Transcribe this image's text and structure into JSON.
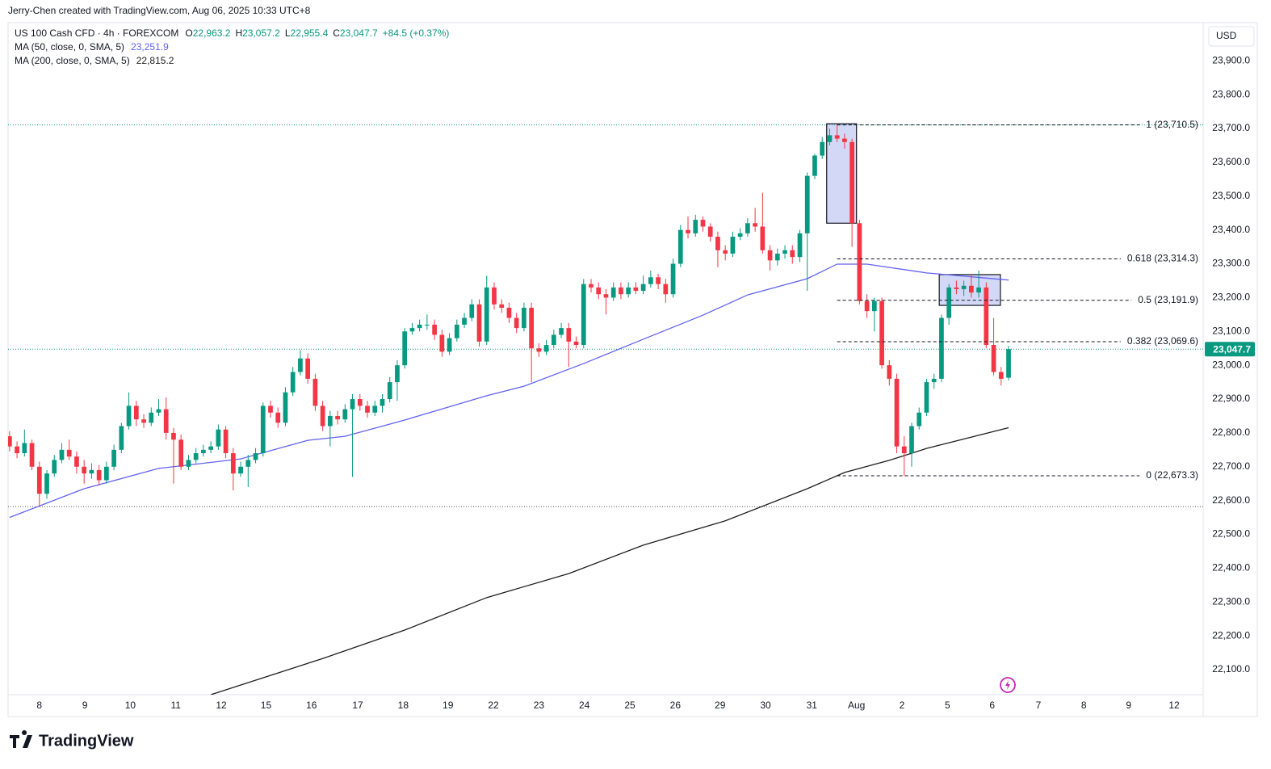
{
  "header": {
    "credit": "Jerry-Chen created with TradingView.com, Aug 06, 2025 10:33 UTC+8",
    "brand": "TradingView"
  },
  "chart_data": {
    "type": "candlestick",
    "title": "US 100 Cash CFD · 4h · FOREXCOM",
    "legend": [
      {
        "key": "O",
        "value": "22,963.2"
      },
      {
        "key": "H",
        "value": "23,057.2"
      },
      {
        "key": "L",
        "value": "22,955.4"
      },
      {
        "key": "C",
        "value": "23,047.7"
      }
    ],
    "change": "+84.5 (+0.37%)",
    "currency": "USD",
    "up_color": "#089981",
    "down_color": "#f23645",
    "ohlc": [
      [
        22790,
        22805,
        22745,
        22760
      ],
      [
        22760,
        22775,
        22725,
        22740
      ],
      [
        22740,
        22810,
        22730,
        22770
      ],
      [
        22770,
        22780,
        22690,
        22700
      ],
      [
        22700,
        22715,
        22582,
        22620
      ],
      [
        22620,
        22690,
        22605,
        22680
      ],
      [
        22680,
        22735,
        22670,
        22720
      ],
      [
        22720,
        22770,
        22710,
        22750
      ],
      [
        22750,
        22780,
        22720,
        22730
      ],
      [
        22730,
        22745,
        22680,
        22700
      ],
      [
        22700,
        22720,
        22650,
        22680
      ],
      [
        22680,
        22710,
        22665,
        22690
      ],
      [
        22690,
        22705,
        22645,
        22660
      ],
      [
        22660,
        22715,
        22650,
        22700
      ],
      [
        22700,
        22765,
        22690,
        22750
      ],
      [
        22750,
        22830,
        22740,
        22820
      ],
      [
        22820,
        22920,
        22810,
        22880
      ],
      [
        22880,
        22895,
        22820,
        22840
      ],
      [
        22840,
        22855,
        22815,
        22830
      ],
      [
        22830,
        22875,
        22820,
        22860
      ],
      [
        22860,
        22900,
        22850,
        22870
      ],
      [
        22870,
        22905,
        22780,
        22800
      ],
      [
        22800,
        22815,
        22650,
        22780
      ],
      [
        22780,
        22795,
        22690,
        22700
      ],
      [
        22700,
        22735,
        22690,
        22720
      ],
      [
        22720,
        22755,
        22710,
        22740
      ],
      [
        22740,
        22765,
        22730,
        22750
      ],
      [
        22750,
        22775,
        22740,
        22760
      ],
      [
        22760,
        22825,
        22750,
        22810
      ],
      [
        22810,
        22820,
        22725,
        22740
      ],
      [
        22740,
        22755,
        22630,
        22680
      ],
      [
        22680,
        22715,
        22670,
        22700
      ],
      [
        22700,
        22735,
        22640,
        22720
      ],
      [
        22720,
        22755,
        22710,
        22740
      ],
      [
        22740,
        22890,
        22730,
        22880
      ],
      [
        22880,
        22895,
        22845,
        22860
      ],
      [
        22860,
        22875,
        22815,
        22830
      ],
      [
        22830,
        22935,
        22820,
        22920
      ],
      [
        22920,
        22995,
        22910,
        22980
      ],
      [
        22980,
        23045,
        22970,
        23020
      ],
      [
        23020,
        23035,
        22945,
        22960
      ],
      [
        22960,
        22975,
        22865,
        22880
      ],
      [
        22880,
        22895,
        22805,
        22820
      ],
      [
        22820,
        22865,
        22760,
        22850
      ],
      [
        22850,
        22865,
        22825,
        22840
      ],
      [
        22840,
        22885,
        22830,
        22870
      ],
      [
        22870,
        22915,
        22670,
        22900
      ],
      [
        22900,
        22915,
        22865,
        22880
      ],
      [
        22880,
        22895,
        22845,
        22860
      ],
      [
        22860,
        22895,
        22850,
        22880
      ],
      [
        22880,
        22915,
        22860,
        22900
      ],
      [
        22900,
        22965,
        22890,
        22950
      ],
      [
        22950,
        23015,
        22895,
        23000
      ],
      [
        23000,
        23110,
        22990,
        23100
      ],
      [
        23100,
        23125,
        23090,
        23110
      ],
      [
        23110,
        23135,
        23100,
        23120
      ],
      [
        23120,
        23150,
        23105,
        23120
      ],
      [
        23120,
        23135,
        23075,
        23090
      ],
      [
        23090,
        23105,
        23025,
        23040
      ],
      [
        23040,
        23095,
        23030,
        23080
      ],
      [
        23080,
        23135,
        23070,
        23120
      ],
      [
        23120,
        23155,
        23110,
        23140
      ],
      [
        23140,
        23195,
        23130,
        23180
      ],
      [
        23180,
        23195,
        23055,
        23070
      ],
      [
        23070,
        23265,
        23060,
        23230
      ],
      [
        23230,
        23245,
        23165,
        23180
      ],
      [
        23180,
        23195,
        23155,
        23170
      ],
      [
        23170,
        23185,
        23125,
        23140
      ],
      [
        23140,
        23155,
        23095,
        23110
      ],
      [
        23110,
        23185,
        23100,
        23170
      ],
      [
        23170,
        23185,
        22950,
        23050
      ],
      [
        23050,
        23065,
        23025,
        23040
      ],
      [
        23040,
        23075,
        23030,
        23060
      ],
      [
        23060,
        23105,
        23050,
        23090
      ],
      [
        23090,
        23125,
        23080,
        23110
      ],
      [
        23110,
        23125,
        22995,
        23070
      ],
      [
        23070,
        23085,
        23050,
        23060
      ],
      [
        23060,
        23255,
        23050,
        23240
      ],
      [
        23240,
        23255,
        23215,
        23230
      ],
      [
        23230,
        23245,
        23195,
        23210
      ],
      [
        23210,
        23225,
        23150,
        23200
      ],
      [
        23200,
        23245,
        23190,
        23230
      ],
      [
        23230,
        23245,
        23195,
        23210
      ],
      [
        23210,
        23245,
        23200,
        23230
      ],
      [
        23230,
        23245,
        23210,
        23220
      ],
      [
        23220,
        23265,
        23210,
        23240
      ],
      [
        23240,
        23280,
        23230,
        23260
      ],
      [
        23260,
        23270,
        23225,
        23240
      ],
      [
        23240,
        23255,
        23185,
        23210
      ],
      [
        23210,
        23315,
        23200,
        23300
      ],
      [
        23300,
        23415,
        23290,
        23400
      ],
      [
        23400,
        23440,
        23375,
        23390
      ],
      [
        23390,
        23445,
        23380,
        23430
      ],
      [
        23430,
        23440,
        23395,
        23410
      ],
      [
        23410,
        23420,
        23365,
        23380
      ],
      [
        23380,
        23395,
        23290,
        23340
      ],
      [
        23340,
        23355,
        23310,
        23330
      ],
      [
        23330,
        23395,
        23320,
        23380
      ],
      [
        23380,
        23405,
        23370,
        23390
      ],
      [
        23390,
        23435,
        23380,
        23420
      ],
      [
        23420,
        23465,
        23395,
        23410
      ],
      [
        23410,
        23510,
        23330,
        23340
      ],
      [
        23340,
        23355,
        23280,
        23310
      ],
      [
        23310,
        23345,
        23295,
        23330
      ],
      [
        23330,
        23355,
        23315,
        23340
      ],
      [
        23340,
        23355,
        23300,
        23320
      ],
      [
        23320,
        23400,
        23305,
        23390
      ],
      [
        23390,
        23570,
        23220,
        23560
      ],
      [
        23560,
        23625,
        23550,
        23620
      ],
      [
        23620,
        23675,
        23610,
        23660
      ],
      [
        23660,
        23700,
        23650,
        23680
      ],
      [
        23680,
        23710.5,
        23660,
        23670
      ],
      [
        23670,
        23685,
        23640,
        23660
      ],
      [
        23660,
        23670,
        23350,
        23420
      ],
      [
        23420,
        23430,
        23180,
        23190
      ],
      [
        23190,
        23210,
        23140,
        23160
      ],
      [
        23160,
        23200,
        23100,
        23190
      ],
      [
        23190,
        23200,
        22990,
        23000
      ],
      [
        23000,
        23015,
        22940,
        22960
      ],
      [
        22960,
        22975,
        22740,
        22760
      ],
      [
        22760,
        22790,
        22673.3,
        22740
      ],
      [
        22740,
        22830,
        22700,
        22820
      ],
      [
        22820,
        22875,
        22810,
        22860
      ],
      [
        22860,
        22960,
        22850,
        22950
      ],
      [
        22950,
        22975,
        22930,
        22960
      ],
      [
        22960,
        23150,
        22950,
        23140
      ],
      [
        23140,
        23240,
        23120,
        23230
      ],
      [
        23230,
        23250,
        23210,
        23225
      ],
      [
        23225,
        23250,
        23205,
        23235
      ],
      [
        23235,
        23270,
        23200,
        23215
      ],
      [
        23215,
        23280,
        23200,
        23230
      ],
      [
        23230,
        23245,
        23050,
        23060
      ],
      [
        23060,
        23140,
        22970,
        22980
      ],
      [
        22980,
        22995,
        22940,
        22960
      ],
      [
        22963.2,
        23057.2,
        22955.4,
        23047.7
      ]
    ],
    "series": [
      {
        "name": "MA (50, close, 0, SMA, 5)",
        "value_label": "23,251.9",
        "color": "#6262f0",
        "x": [
          0,
          10,
          20,
          31,
          40,
          45,
          53,
          64,
          69,
          77,
          85,
          93,
          99,
          107,
          111,
          115,
          123,
          134
        ],
        "values": [
          22550,
          22635,
          22695,
          22723,
          22778,
          22790,
          22838,
          22910,
          22938,
          23005,
          23077,
          23148,
          23208,
          23256,
          23299,
          23299,
          23273,
          23251.9
        ]
      },
      {
        "name": "MA (200, close, 0, SMA, 5)",
        "value_label": "22,815.2",
        "color": "#1e1e1e",
        "x": [
          27,
          42,
          53,
          64,
          75,
          85,
          96,
          107,
          112,
          118,
          123,
          134
        ],
        "values": [
          22026,
          22133,
          22217,
          22313,
          22384,
          22468,
          22540,
          22635,
          22683,
          22719,
          22754,
          22815.2
        ]
      }
    ],
    "fib": {
      "start": 111,
      "values": [
        23710.5,
        23314.3,
        23191.9,
        23069.6,
        22673.3
      ],
      "value_labels": [
        "1 (23,710.5)",
        "0.618 (23,314.3)",
        "0.5 (23,191.9)",
        "0.382 (23,069.6)",
        "0 (22,673.3)"
      ]
    },
    "boxes": [
      {
        "x": [
          109.6,
          113.6
        ],
        "y": [
          23714,
          23420
        ]
      },
      {
        "x": [
          124.7,
          132.9
        ],
        "y": [
          23268,
          23177
        ]
      }
    ],
    "hlines": [
      {
        "value": 23710.5,
        "color": "#089981"
      },
      {
        "value": 22582,
        "color": "#555555"
      },
      {
        "value": 23047.7,
        "color": "#089981"
      }
    ],
    "last_price": {
      "value": 23047.7,
      "label": "23,047.7"
    },
    "xlim": [
      -0.2,
      160.1
    ],
    "xticks": [
      {
        "value": 4.0,
        "label": "8"
      },
      {
        "value": 10.1,
        "label": "9"
      },
      {
        "value": 16.2,
        "label": "10"
      },
      {
        "value": 22.3,
        "label": "11"
      },
      {
        "value": 28.4,
        "label": "12"
      },
      {
        "value": 34.4,
        "label": "15"
      },
      {
        "value": 40.5,
        "label": "16"
      },
      {
        "value": 46.7,
        "label": "17"
      },
      {
        "value": 52.8,
        "label": "18"
      },
      {
        "value": 58.8,
        "label": "19"
      },
      {
        "value": 64.9,
        "label": "22"
      },
      {
        "value": 71.0,
        "label": "23"
      },
      {
        "value": 77.1,
        "label": "24"
      },
      {
        "value": 83.2,
        "label": "25"
      },
      {
        "value": 89.3,
        "label": "26"
      },
      {
        "value": 95.3,
        "label": "29"
      },
      {
        "value": 101.4,
        "label": "30"
      },
      {
        "value": 107.6,
        "label": "31"
      },
      {
        "value": 113.6,
        "label": "Aug"
      },
      {
        "value": 119.7,
        "label": "2"
      },
      {
        "value": 125.8,
        "label": "5"
      },
      {
        "value": 131.8,
        "label": "6"
      },
      {
        "value": 138.0,
        "label": "7"
      },
      {
        "value": 144.1,
        "label": "8"
      },
      {
        "value": 150.1,
        "label": "9"
      },
      {
        "value": 156.2,
        "label": "12"
      }
    ],
    "ylim": [
      22026,
      24013
    ],
    "yticks": [
      {
        "value": 22100,
        "label": "22,100.0"
      },
      {
        "value": 22200,
        "label": "22,200.0"
      },
      {
        "value": 22300,
        "label": "22,300.0"
      },
      {
        "value": 22400,
        "label": "22,400.0"
      },
      {
        "value": 22500,
        "label": "22,500.0"
      },
      {
        "value": 22600,
        "label": "22,600.0"
      },
      {
        "value": 22700,
        "label": "22,700.0"
      },
      {
        "value": 22800,
        "label": "22,800.0"
      },
      {
        "value": 22900,
        "label": "22,900.0"
      },
      {
        "value": 23000,
        "label": "23,000.0"
      },
      {
        "value": 23100,
        "label": "23,100.0"
      },
      {
        "value": 23200,
        "label": "23,200.0"
      },
      {
        "value": 23300,
        "label": "23,300.0"
      },
      {
        "value": 23400,
        "label": "23,400.0"
      },
      {
        "value": 23500,
        "label": "23,500.0"
      },
      {
        "value": 23600,
        "label": "23,600.0"
      },
      {
        "value": 23700,
        "label": "23,700.0"
      },
      {
        "value": 23800,
        "label": "23,800.0"
      },
      {
        "value": 23900,
        "label": "23,900.0"
      }
    ],
    "grid": false
  }
}
